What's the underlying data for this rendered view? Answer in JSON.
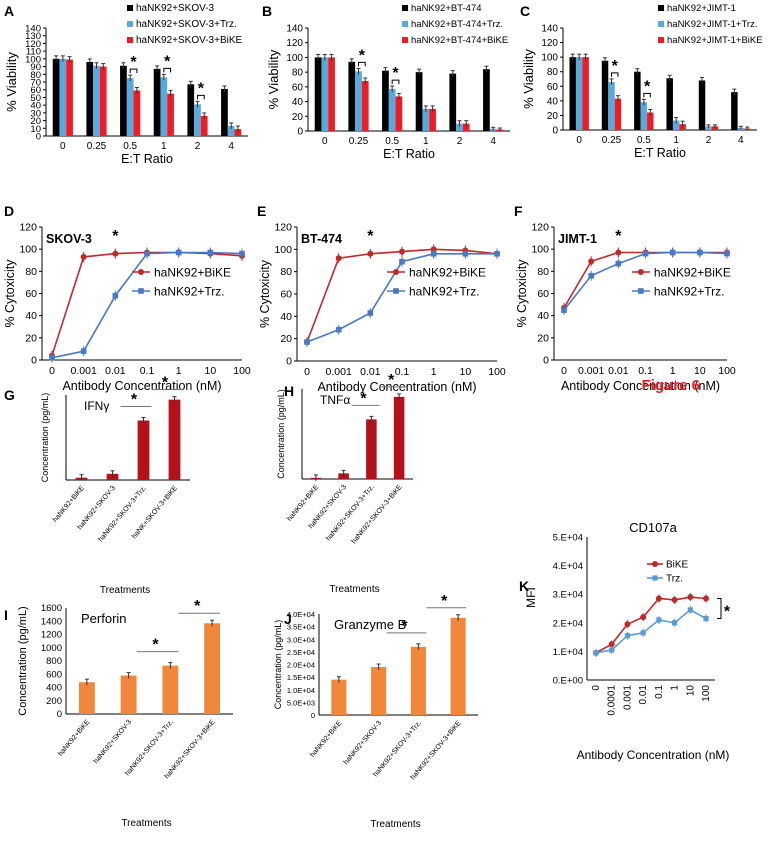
{
  "figure_label": "Figure 6",
  "colors": {
    "black": "#000000",
    "blue": "#5aa9dd",
    "red": "#ee1c24",
    "darkred": "#b3121b",
    "orange": "#f0873a",
    "line_red": "#c0282a",
    "line_blue": "#4a78c4"
  },
  "chart_data": [
    {
      "id": "A",
      "type": "bar",
      "letter": "A",
      "xlabel": "E:T Ratio",
      "ylabel": "% Viability",
      "categories": [
        "0",
        "0.25",
        "0.5",
        "1",
        "2",
        "4"
      ],
      "ylim": [
        0,
        140
      ],
      "yticks": [
        0,
        10,
        20,
        30,
        40,
        50,
        60,
        70,
        80,
        90,
        100,
        110,
        120,
        130,
        140
      ],
      "series": [
        {
          "name": "haNK92+SKOV-3",
          "values": [
            100,
            96,
            91,
            87,
            67,
            61
          ]
        },
        {
          "name": "haNK92+SKOV-3+Trz.",
          "values": [
            100,
            91,
            75,
            76,
            41,
            13
          ]
        },
        {
          "name": "haNK92+SKOV-3+BiKE",
          "values": [
            99,
            90,
            59,
            55,
            26,
            9
          ]
        }
      ],
      "stars": [
        2,
        3,
        4
      ]
    },
    {
      "id": "B",
      "type": "bar",
      "letter": "B",
      "xlabel": "E:T Ratio",
      "ylabel": "% Viability",
      "categories": [
        "0",
        "0.25",
        "0.5",
        "1",
        "2",
        "4"
      ],
      "ylim": [
        0,
        140
      ],
      "yticks": [
        0,
        20,
        40,
        60,
        80,
        100,
        120,
        140
      ],
      "series": [
        {
          "name": "haNK92+BT-474",
          "values": [
            100,
            94,
            82,
            80,
            78,
            84
          ]
        },
        {
          "name": "haNK92+BT-474+Trz.",
          "values": [
            100,
            81,
            57,
            30,
            10,
            3
          ]
        },
        {
          "name": "haNK92+BT-474+BiKE",
          "values": [
            100,
            68,
            47,
            30,
            10,
            2
          ]
        }
      ],
      "stars": [
        1,
        2
      ]
    },
    {
      "id": "C",
      "type": "bar",
      "letter": "C",
      "xlabel": "E:T Ratio",
      "ylabel": "% Viability",
      "categories": [
        "0",
        "0.25",
        "0.5",
        "1",
        "2",
        "4"
      ],
      "ylim": [
        0,
        140
      ],
      "yticks": [
        0,
        20,
        40,
        60,
        80,
        100,
        120,
        140
      ],
      "series": [
        {
          "name": "haNK92+JIMT-1",
          "values": [
            100,
            95,
            80,
            71,
            68,
            52
          ]
        },
        {
          "name": "haNK92+JIMT-1+Trz.",
          "values": [
            100,
            66,
            38,
            13,
            5,
            3
          ]
        },
        {
          "name": "haNK92+JIMT-1+BiKE",
          "values": [
            100,
            43,
            24,
            8,
            5,
            2
          ]
        }
      ],
      "stars": [
        1,
        2
      ]
    },
    {
      "id": "D",
      "type": "line",
      "letter": "D",
      "title": "SKOV-3",
      "xlabel": "Antibody Concentration (nM)",
      "ylabel": "% Cytoxicity",
      "x": [
        "0",
        "0.001",
        "0.01",
        "0.1",
        "1",
        "10",
        "100"
      ],
      "ylim": [
        0,
        120
      ],
      "yticks": [
        0,
        20,
        40,
        60,
        80,
        100,
        120
      ],
      "series": [
        {
          "name": "haNK92+BiKE",
          "values": [
            4,
            93,
            96,
            97,
            97,
            96,
            94
          ]
        },
        {
          "name": "haNK92+Trz.",
          "values": [
            2,
            8,
            58,
            96,
            97,
            97,
            96
          ]
        }
      ],
      "stars": [
        2
      ]
    },
    {
      "id": "E",
      "type": "line",
      "letter": "E",
      "title": "BT-474",
      "xlabel": "Antibody Concentration (nM)",
      "ylabel": "% Cytoxicity",
      "x": [
        "0",
        "0.001",
        "0.01",
        "0.1",
        "1",
        "10",
        "100"
      ],
      "ylim": [
        0,
        120
      ],
      "yticks": [
        0,
        20,
        40,
        60,
        80,
        100,
        120
      ],
      "series": [
        {
          "name": "haNK92+BiKE",
          "values": [
            17,
            92,
            96,
            98,
            100,
            99,
            96
          ]
        },
        {
          "name": "haNK92+Trz.",
          "values": [
            17,
            28,
            43,
            89,
            96,
            96,
            96
          ]
        }
      ],
      "stars": [
        2
      ]
    },
    {
      "id": "F",
      "type": "line",
      "letter": "F",
      "title": "JIMT-1",
      "xlabel": "Antibody Concentration (nM)",
      "ylabel": "% Cytoxicity",
      "x": [
        "0",
        "0.001",
        "0.01",
        "0.1",
        "1",
        "10",
        "100"
      ],
      "ylim": [
        0,
        120
      ],
      "yticks": [
        0,
        20,
        40,
        60,
        80,
        100,
        120
      ],
      "series": [
        {
          "name": "haNK92+BiKE",
          "values": [
            47,
            89,
            97,
            97,
            97,
            97,
            97
          ]
        },
        {
          "name": "haNK92+Trz.",
          "values": [
            45,
            76,
            87,
            96,
            97,
            97,
            96
          ]
        }
      ],
      "stars": [
        2
      ]
    },
    {
      "id": "G",
      "type": "bar",
      "letter": "G",
      "title": "IFNγ",
      "xlabel": "Treatments",
      "ylabel": "Concentration (pg/mL)",
      "categories": [
        "haNK92+BiKE",
        "haNK92+SKOV-3",
        "haNK92+SKOV-3+Trz.",
        "haNK+SKOV-3+BiKE"
      ],
      "values": [
        3,
        8,
        77,
        104
      ],
      "ylim": [
        0,
        110
      ]
    },
    {
      "id": "H",
      "type": "bar",
      "letter": "H",
      "title": "TNFα",
      "xlabel": "Treatments",
      "ylabel": "Concentration (pg/mL)",
      "categories": [
        "haNK92+BiKE",
        "haNK92+SKOV-3",
        "haNK92+SKOV-3+Trz.",
        "haNK92+SKOV-3+BiKE"
      ],
      "values": [
        1,
        5,
        53,
        73
      ],
      "ylim": [
        0,
        80
      ]
    },
    {
      "id": "I",
      "type": "bar",
      "letter": "I",
      "title": "Perforin",
      "xlabel": "Treatments",
      "ylabel": "Concentration (pg/mL)",
      "categories": [
        "haNK92+BiKE",
        "haNK92+SKOV-3",
        "haNK92+SKOV-3+Trz.",
        "haNK92+SKOV-3+BiKE"
      ],
      "values": [
        480,
        580,
        730,
        1370
      ],
      "ylim": [
        0,
        1600
      ],
      "yticks": [
        "0",
        "200",
        "400",
        "600",
        "800",
        "1000",
        "1200",
        "1400",
        "1600"
      ]
    },
    {
      "id": "J",
      "type": "bar",
      "letter": "J",
      "title": "Granzyme B",
      "xlabel": "Treatments",
      "ylabel": "Concentration (pg/mL)",
      "categories": [
        "haNK92+BiKE",
        "haNK92+SKOV-3",
        "haNK92+SKOV-3+Trz.",
        "haNK92+SKOV-3+BiKE"
      ],
      "values": [
        14000,
        19000,
        27000,
        38500
      ],
      "ylim": [
        0,
        40000
      ],
      "yticks": [
        "0",
        "5.0E+03",
        "1.0E+04",
        "1.5E+04",
        "2.0E+04",
        "2.5E+04",
        "3.0E+04",
        "3.5E+04",
        "4.0E+04"
      ]
    },
    {
      "id": "K",
      "type": "line",
      "letter": "K",
      "title": "CD107a",
      "xlabel": "Antibody Concentration (nM)",
      "ylabel": "MFI",
      "x": [
        "0",
        "0.0001",
        "0.001",
        "0.01",
        "0.1",
        "1",
        "10",
        "100"
      ],
      "ylim": [
        0,
        50000
      ],
      "yticks": [
        "0.E+00",
        "1.E+04",
        "2.E+04",
        "3.E+04",
        "4.E+04",
        "5.E+04"
      ],
      "series": [
        {
          "name": "BiKE",
          "values": [
            9500,
            12500,
            19500,
            22000,
            28500,
            28000,
            29000,
            28500
          ]
        },
        {
          "name": "Trz.",
          "values": [
            9500,
            10500,
            15500,
            16500,
            21000,
            20000,
            24500,
            21500
          ]
        }
      ]
    }
  ]
}
